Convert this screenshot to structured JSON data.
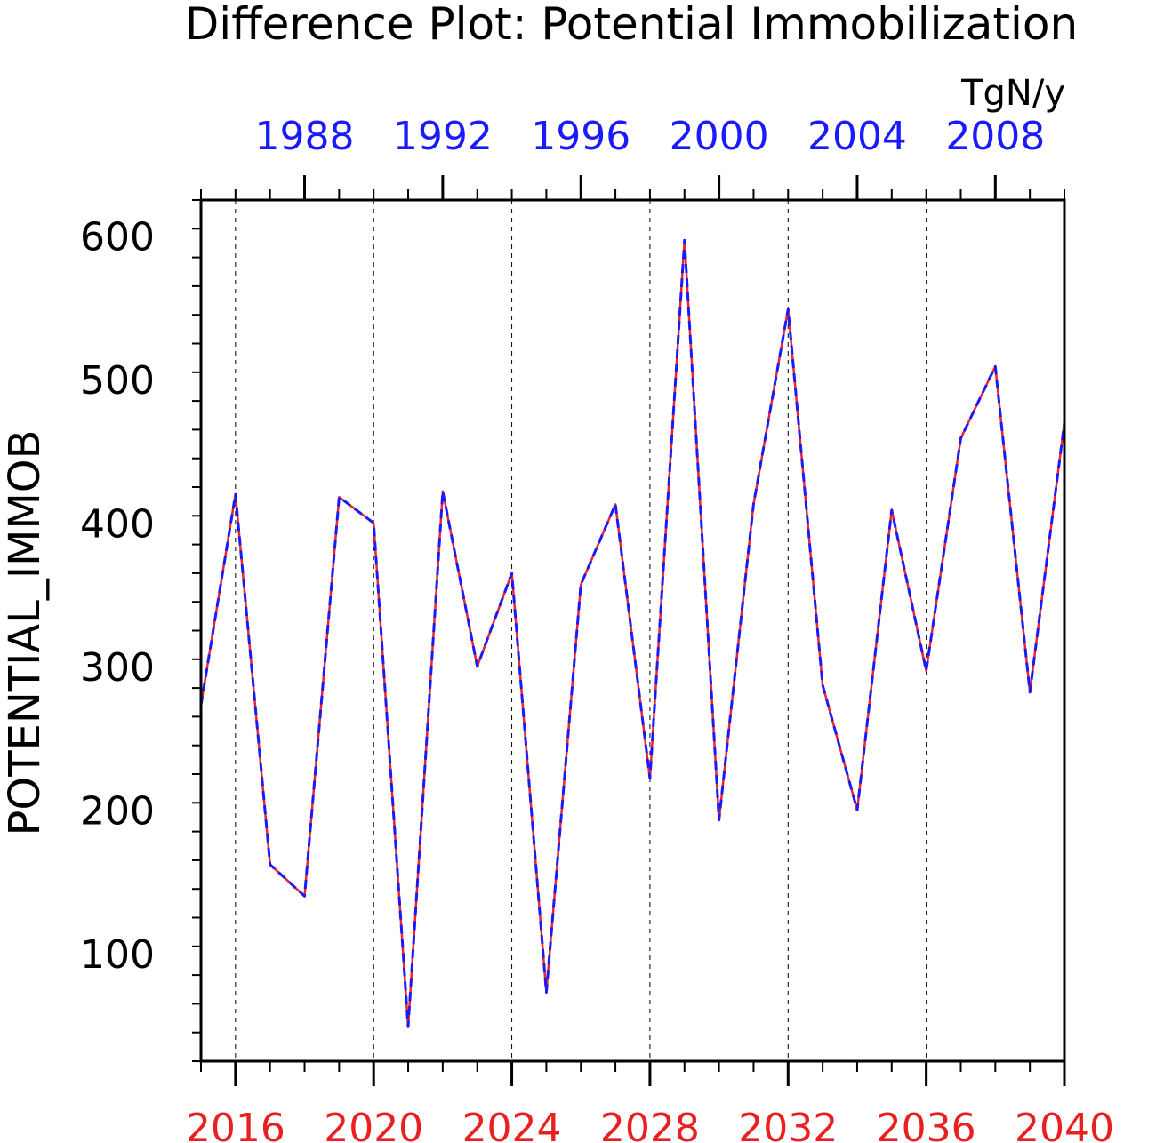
{
  "chart_data": {
    "type": "line",
    "title": "Difference Plot: Potential Immobilization",
    "units": "TgN/y",
    "ylabel": "POTENTIAL_IMMOB",
    "ylim": [
      25,
      625
    ],
    "yticks": [
      100,
      200,
      300,
      400,
      500,
      600
    ],
    "bottom_axis": {
      "color": "#e82020",
      "xlim": [
        2015,
        2040
      ],
      "ticks": [
        2016,
        2020,
        2024,
        2028,
        2032,
        2036,
        2040
      ],
      "tick_labels": [
        "2016",
        "2020",
        "2024",
        "2028",
        "2032",
        "2036",
        "2040"
      ]
    },
    "top_axis": {
      "color": "#1a1aff",
      "xlim": [
        1985,
        2010
      ],
      "ticks": [
        1988,
        1992,
        1996,
        2000,
        2004,
        2008
      ],
      "tick_labels": [
        "1988",
        "1992",
        "1996",
        "2000",
        "2004",
        "2008"
      ]
    },
    "grid": "dashed vertical at major ticks",
    "series": [
      {
        "axis": "bottom",
        "color": "#ff2020",
        "style": "solid",
        "x": [
          2015,
          2016,
          2017,
          2018,
          2019,
          2020,
          2021,
          2022,
          2023,
          2024,
          2025,
          2026,
          2027,
          2028,
          2029,
          2030,
          2031,
          2032,
          2033,
          2034,
          2035,
          2036,
          2037,
          2038,
          2039,
          2040
        ],
        "values": [
          273,
          420,
          162,
          140,
          418,
          400,
          49,
          422,
          300,
          365,
          73,
          357,
          413,
          222,
          597,
          193,
          413,
          549,
          287,
          200,
          409,
          297,
          459,
          509,
          282,
          470
        ]
      },
      {
        "axis": "top",
        "color": "#1a1aff",
        "style": "dashed",
        "x": [
          1985,
          1986,
          1987,
          1988,
          1989,
          1990,
          1991,
          1992,
          1993,
          1994,
          1995,
          1996,
          1997,
          1998,
          1999,
          2000,
          2001,
          2002,
          2003,
          2004,
          2005,
          2006,
          2007,
          2008,
          2009,
          2010
        ],
        "values": [
          273,
          420,
          162,
          140,
          418,
          400,
          49,
          422,
          300,
          365,
          73,
          357,
          413,
          222,
          597,
          193,
          413,
          549,
          287,
          200,
          409,
          297,
          459,
          509,
          282,
          470
        ]
      }
    ]
  }
}
